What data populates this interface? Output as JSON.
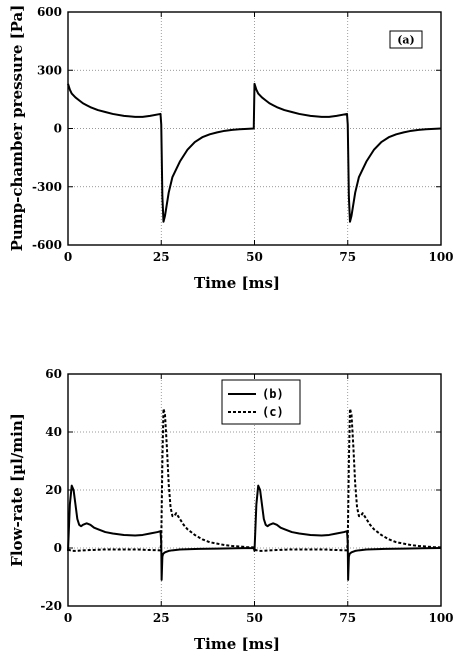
{
  "chart_data": [
    {
      "type": "line",
      "panel_label": "(a)",
      "xlabel": "Time [ms]",
      "ylabel": "Pump-chamber pressure [Pa]",
      "xlim": [
        0,
        100
      ],
      "ylim": [
        -600,
        600
      ],
      "xticks": [
        0,
        25,
        50,
        75,
        100
      ],
      "yticks": [
        -600,
        -300,
        0,
        300,
        600
      ],
      "grid": "dotted",
      "series": [
        {
          "style": "solid",
          "x": [
            0,
            0.5,
            1,
            2,
            3,
            4,
            5,
            6,
            8,
            10,
            12,
            15,
            18,
            20,
            22,
            24.8,
            25,
            25.3,
            25.6,
            26,
            27,
            28,
            30,
            32,
            34,
            36,
            38,
            40,
            42,
            44,
            46,
            48,
            49.8,
            50,
            50.5,
            51,
            52,
            53,
            54,
            55,
            56,
            58,
            60,
            62,
            65,
            68,
            70,
            72,
            74.8,
            75,
            75.3,
            75.6,
            76,
            77,
            78,
            80,
            82,
            84,
            86,
            88,
            90,
            92,
            94,
            96,
            98,
            100
          ],
          "y": [
            230,
            200,
            180,
            160,
            145,
            130,
            120,
            110,
            95,
            85,
            75,
            65,
            60,
            60,
            65,
            75,
            20,
            -350,
            -480,
            -450,
            -330,
            -250,
            -170,
            -110,
            -70,
            -45,
            -30,
            -20,
            -12,
            -7,
            -4,
            -2,
            0,
            230,
            200,
            180,
            160,
            145,
            130,
            120,
            110,
            95,
            85,
            75,
            65,
            60,
            60,
            65,
            75,
            20,
            -350,
            -480,
            -450,
            -330,
            -250,
            -170,
            -110,
            -70,
            -45,
            -30,
            -20,
            -12,
            -7,
            -4,
            -2,
            0
          ]
        }
      ]
    },
    {
      "type": "line",
      "xlabel": "Time [ms]",
      "ylabel": "Flow-rate [µl/min]",
      "xlim": [
        0,
        100
      ],
      "ylim": [
        -20,
        60
      ],
      "xticks": [
        0,
        25,
        50,
        75,
        100
      ],
      "yticks": [
        -20,
        0,
        20,
        40,
        60
      ],
      "grid": "dotted",
      "legend_position": "top-center",
      "series": [
        {
          "name": "(b)",
          "style": "solid",
          "x": [
            0,
            0.5,
            1,
            1.5,
            2,
            2.5,
            3,
            3.5,
            4,
            5,
            6,
            7,
            8,
            10,
            12,
            15,
            18,
            20,
            22,
            24,
            24.8,
            25,
            25.1,
            25.3,
            25.5,
            26,
            27,
            28,
            30,
            35,
            40,
            45,
            49.8,
            50,
            50.5,
            51,
            51.5,
            52,
            52.5,
            53,
            53.5,
            54,
            55,
            56,
            57,
            58,
            60,
            62,
            65,
            68,
            70,
            72,
            74,
            74.8,
            75,
            75.1,
            75.3,
            75.5,
            76,
            77,
            78,
            80,
            85,
            90,
            95,
            100
          ],
          "y": [
            -1,
            15,
            21.5,
            20,
            15,
            10,
            8,
            7.5,
            8,
            8.5,
            8,
            7,
            6.5,
            5.5,
            5,
            4.5,
            4.3,
            4.5,
            5,
            5.5,
            5.8,
            2,
            -11,
            -3,
            -2,
            -1.5,
            -1,
            -0.8,
            -0.5,
            -0.3,
            -0.2,
            -0.1,
            0,
            -1,
            15,
            21.5,
            20,
            15,
            10,
            8,
            7.5,
            8,
            8.5,
            8,
            7,
            6.5,
            5.5,
            5,
            4.5,
            4.3,
            4.5,
            5,
            5.5,
            5.8,
            2,
            -11,
            -3,
            -2,
            -1.5,
            -1,
            -0.8,
            -0.5,
            -0.3,
            -0.2,
            -0.1,
            0
          ]
        },
        {
          "name": "(c)",
          "style": "dashed",
          "x": [
            0,
            1,
            2,
            4,
            6,
            8,
            10,
            12,
            15,
            18,
            20,
            22,
            24.8,
            25,
            25.3,
            25.6,
            26,
            26.5,
            27,
            27.5,
            28,
            28.5,
            29,
            29.5,
            30,
            31,
            32,
            34,
            36,
            38,
            40,
            42,
            44,
            46,
            48,
            49.8,
            50,
            51,
            52,
            54,
            56,
            58,
            60,
            62,
            65,
            68,
            70,
            72,
            74.8,
            75,
            75.3,
            75.6,
            76,
            76.5,
            77,
            77.5,
            78,
            78.5,
            79,
            79.5,
            80,
            81,
            82,
            84,
            86,
            88,
            90,
            92,
            94,
            96,
            98,
            100
          ],
          "y": [
            -0.5,
            -1,
            -1,
            -0.8,
            -0.7,
            -0.6,
            -0.5,
            -0.5,
            -0.5,
            -0.5,
            -0.6,
            -0.7,
            -0.8,
            2,
            30,
            48,
            46,
            35,
            22,
            14,
            11,
            11,
            12,
            11,
            10,
            8,
            6.5,
            4.5,
            3,
            2,
            1.5,
            1,
            0.7,
            0.5,
            0.3,
            0.2,
            -0.5,
            -1,
            -1,
            -0.8,
            -0.7,
            -0.6,
            -0.5,
            -0.5,
            -0.5,
            -0.5,
            -0.6,
            -0.7,
            -0.8,
            2,
            30,
            48,
            46,
            35,
            22,
            14,
            11,
            11,
            12,
            11,
            10,
            8,
            6.5,
            4.5,
            3,
            2,
            1.5,
            1,
            0.7,
            0.5,
            0.3,
            0.2
          ]
        }
      ]
    }
  ]
}
